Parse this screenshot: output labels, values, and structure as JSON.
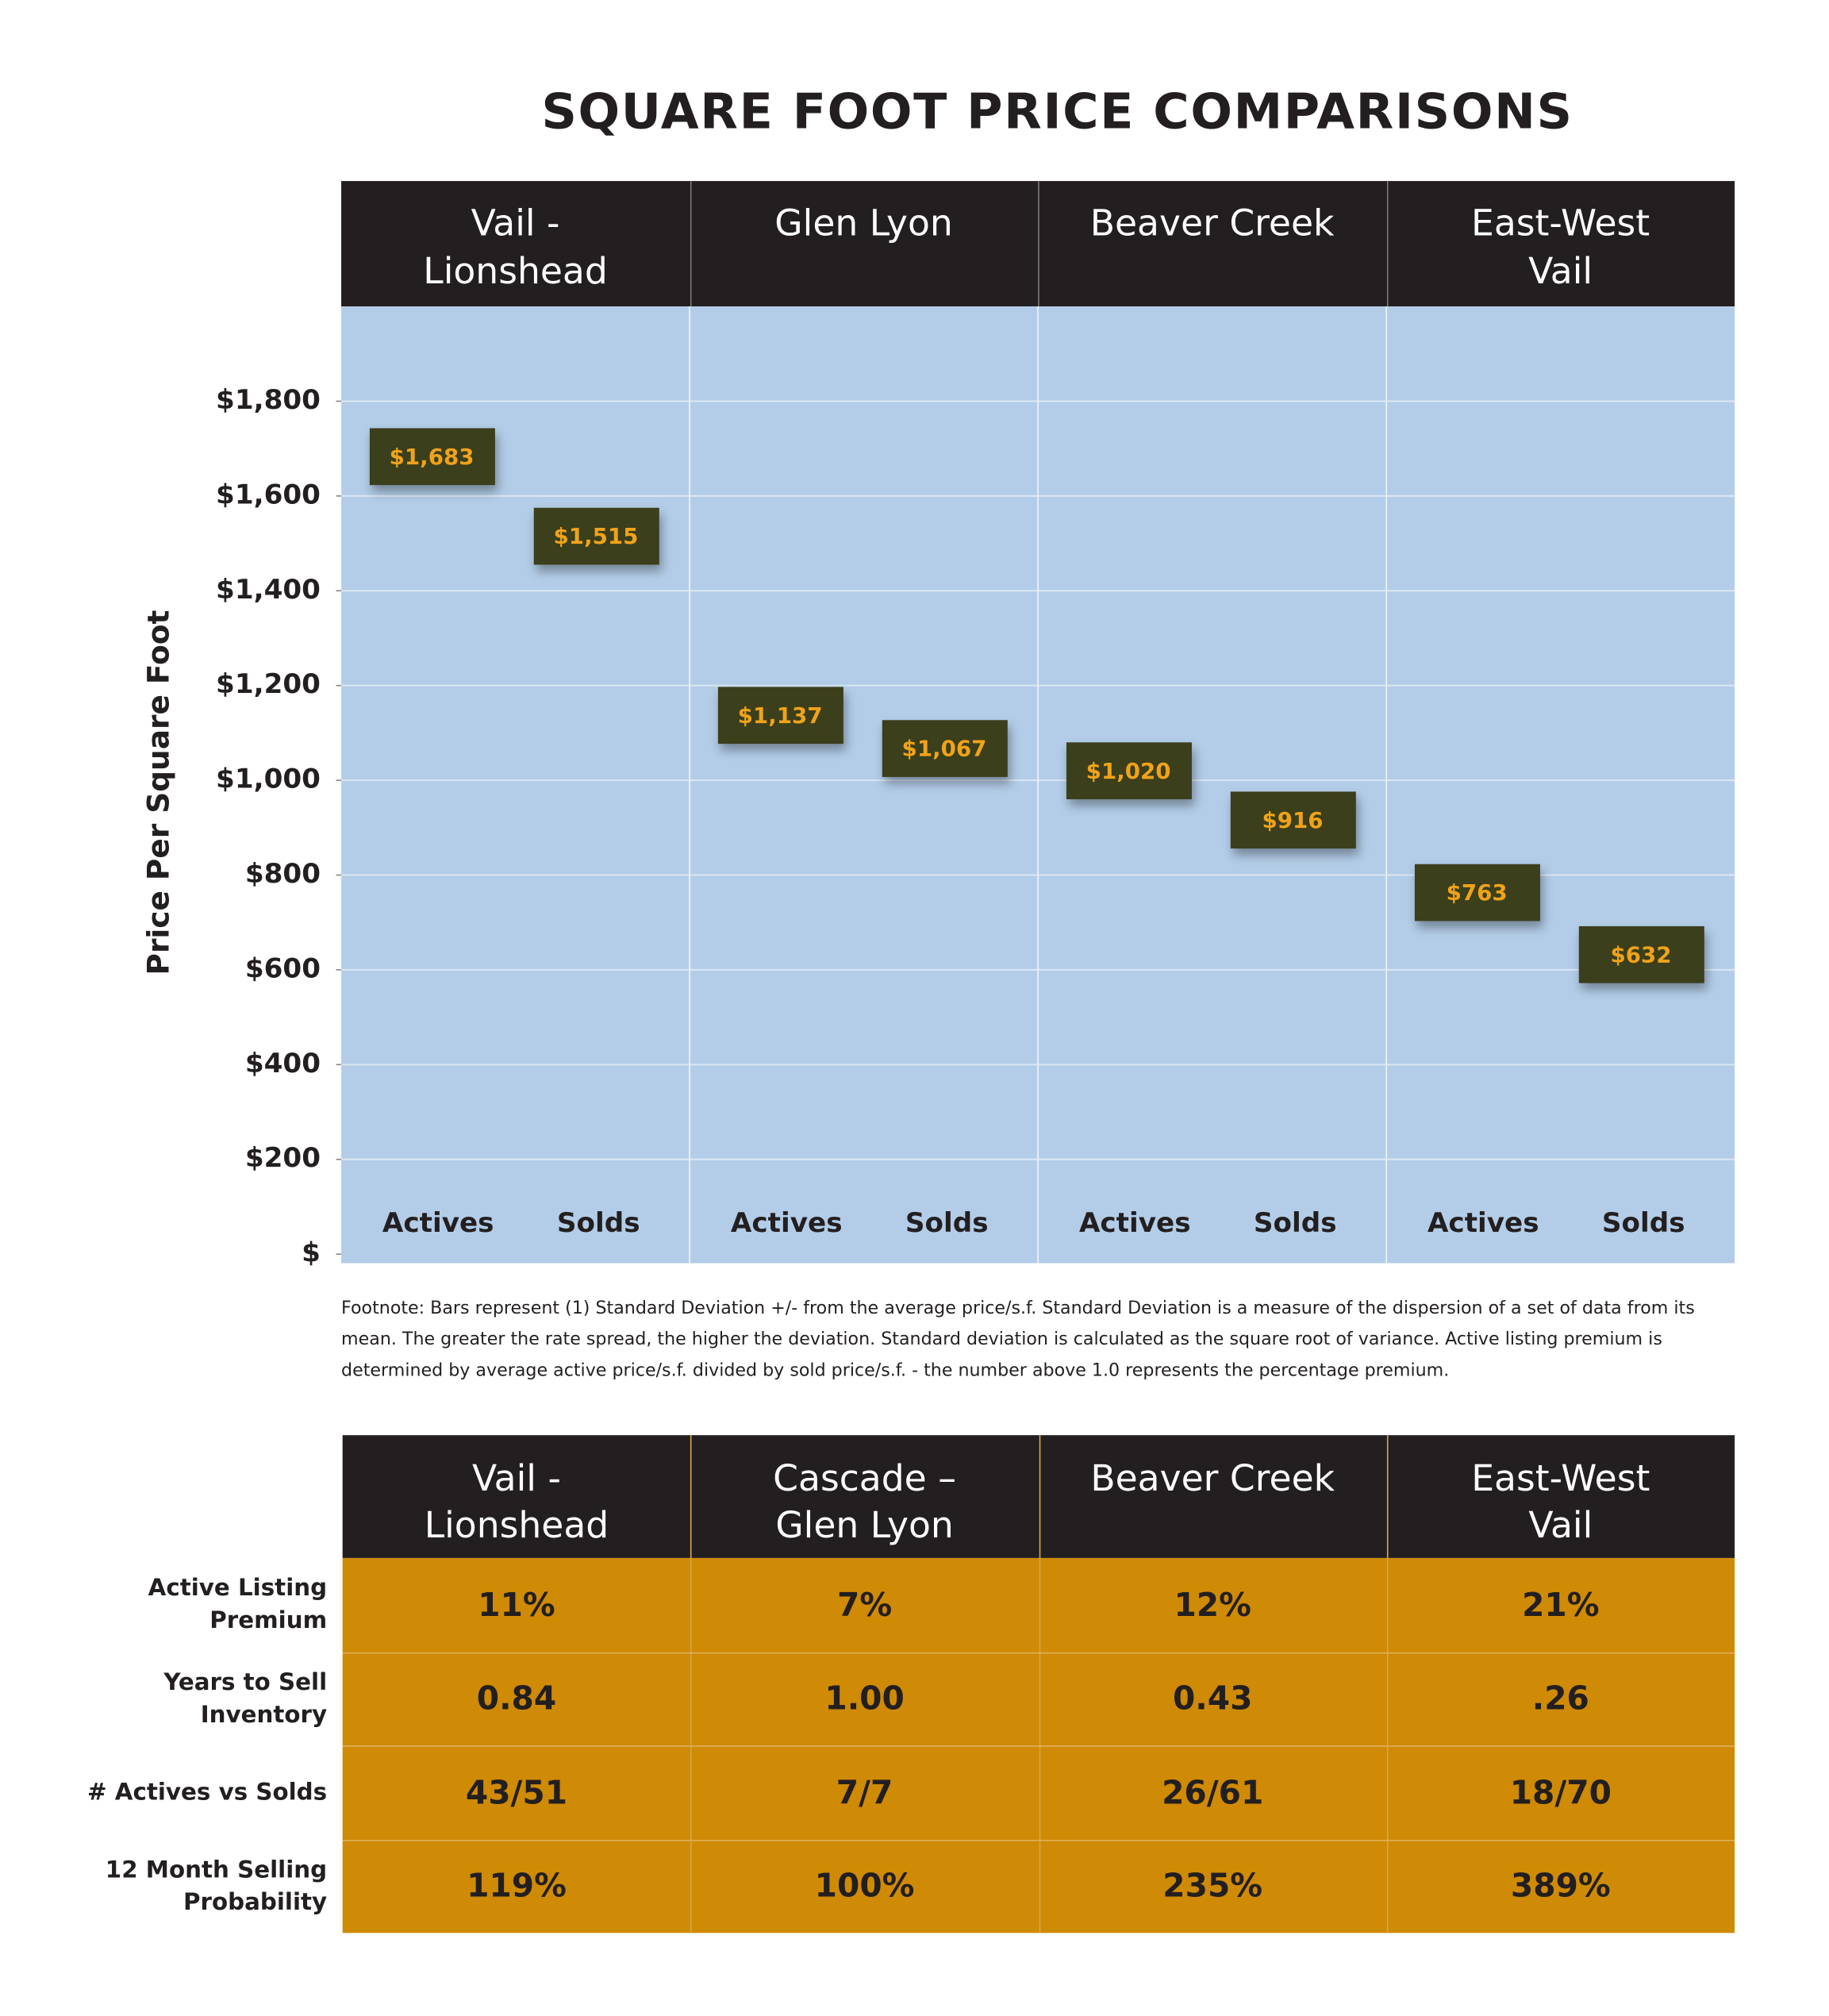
{
  "chart_data": {
    "type": "range-box",
    "title": "SQUARE FOOT PRICE COMPARISONS",
    "y_label": "Price Per Square Foot",
    "categories": [
      "Vail -\nLionshead",
      "Glen Lyon",
      "Beaver Creek",
      "East-West\nVail"
    ],
    "series": [
      {
        "name": "Actives",
        "color": "#3b3f1b",
        "values": [
          1683,
          1137,
          1020,
          763
        ],
        "value_labels": [
          "$1,683",
          "$1,137",
          "$1,020",
          "$763"
        ]
      },
      {
        "name": "Solds",
        "color": "#3b3f1b",
        "values": [
          1515,
          1067,
          916,
          632
        ],
        "value_labels": [
          "$1,515",
          "$1,067",
          "$916",
          "$632"
        ]
      }
    ],
    "ylim": [
      0,
      2000
    ],
    "yticks": [
      {
        "value": 0,
        "label": "$"
      },
      {
        "value": 200,
        "label": "$200"
      },
      {
        "value": 400,
        "label": "$400"
      },
      {
        "value": 600,
        "label": "$600"
      },
      {
        "value": 800,
        "label": "$800"
      },
      {
        "value": 1000,
        "label": "$1,000"
      },
      {
        "value": 1200,
        "label": "$1,200"
      },
      {
        "value": 1400,
        "label": "$1,400"
      },
      {
        "value": 1600,
        "label": "$1,600"
      },
      {
        "value": 1800,
        "label": "$1,800"
      }
    ],
    "grid": true,
    "footnote": "Footnote:  Bars represent (1) Standard Deviation +/-  from the average price/s.f. Standard Deviation is a measure of the dispersion of a set of data from its mean.  The greater the rate spread, the higher the deviation.  Standard deviation is calculated as the square root of variance. Active listing premium is determined by average active price/s.f. divided by sold price/s.f. - the number above 1.0 represents the percentage premium."
  },
  "table": {
    "headers": [
      "Vail -\nLionshead",
      "Cascade –\nGlen Lyon",
      "Beaver Creek",
      "East-West\nVail"
    ],
    "row_labels": [
      "Active Listing\nPremium",
      "Years to Sell\nInventory",
      "# Actives vs Solds",
      "12 Month Selling\nProbability"
    ],
    "rows": [
      [
        "11%",
        "7%",
        "12%",
        "21%"
      ],
      [
        "0.84",
        "1.00",
        "0.43",
        ".26"
      ],
      [
        "43/51",
        "7/7",
        "26/61",
        "18/70"
      ],
      [
        "119%",
        "100%",
        "235%",
        "389%"
      ]
    ]
  }
}
